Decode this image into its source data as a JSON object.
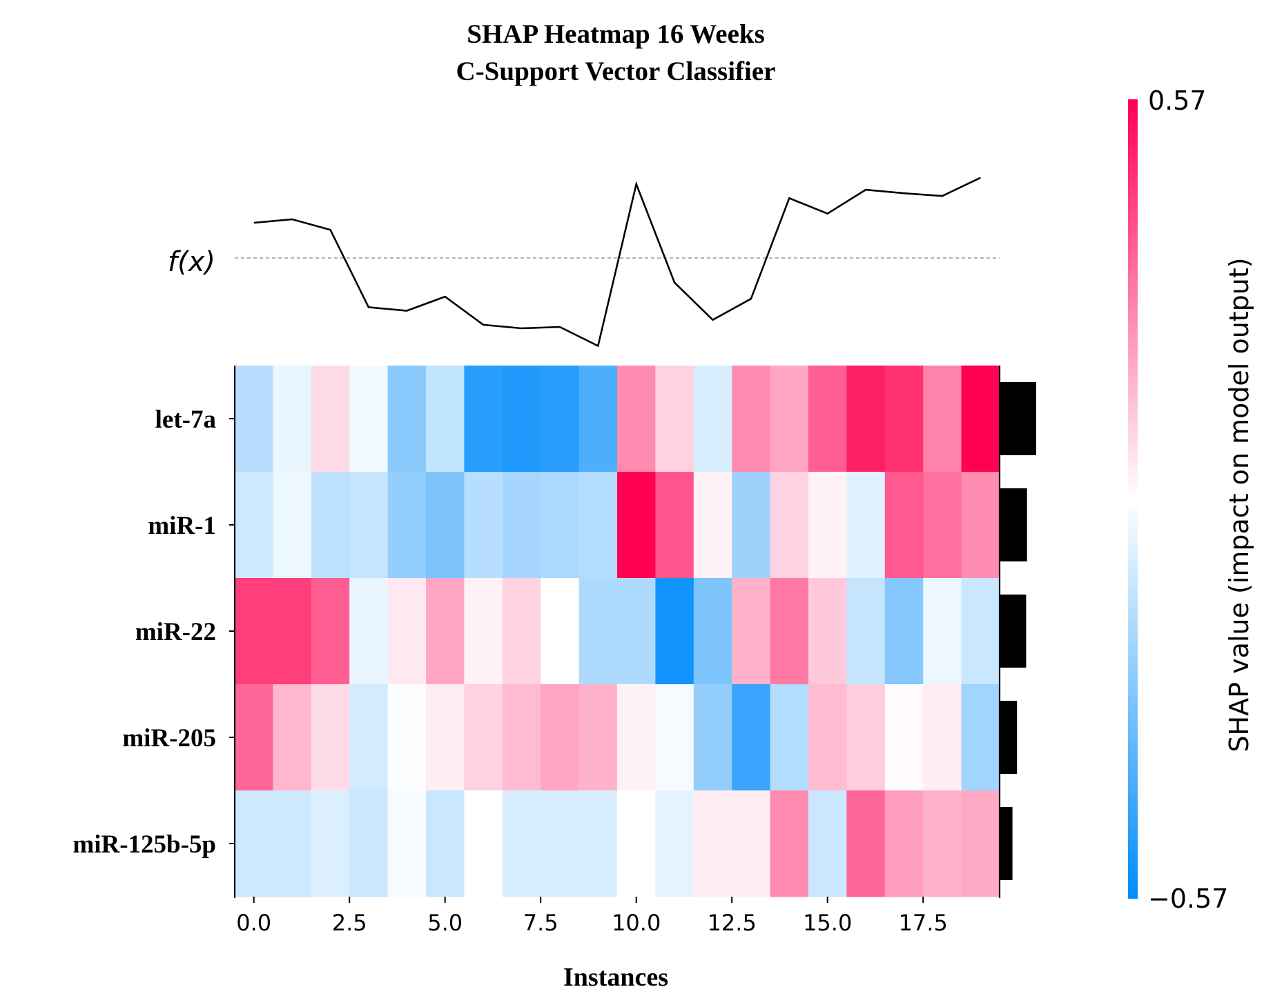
{
  "chart_data": {
    "type": "heatmap",
    "title": "SHAP Heatmap 16 Weeks",
    "subtitle": "C-Support Vector Classifier",
    "xlabel": "Instances",
    "xlim": [
      -0.5,
      19.5
    ],
    "xticks": [
      "0.0",
      "2.5",
      "5.0",
      "7.5",
      "10.0",
      "12.5",
      "15.0",
      "17.5"
    ],
    "features": [
      "let-7a",
      "miR-1",
      "miR-22",
      "miR-205",
      "miR-125b-5p"
    ],
    "values": [
      [
        -0.16,
        -0.05,
        0.08,
        -0.03,
        -0.26,
        -0.14,
        -0.48,
        -0.5,
        -0.48,
        -0.4,
        0.26,
        0.1,
        -0.09,
        0.26,
        0.2,
        0.36,
        0.5,
        0.46,
        0.28,
        0.57
      ],
      [
        -0.11,
        -0.04,
        -0.15,
        -0.13,
        -0.24,
        -0.29,
        -0.16,
        -0.2,
        -0.19,
        -0.17,
        0.57,
        0.38,
        0.03,
        -0.22,
        0.1,
        0.03,
        -0.07,
        0.37,
        0.32,
        0.26
      ],
      [
        0.43,
        0.43,
        0.36,
        -0.05,
        0.05,
        0.2,
        0.03,
        0.1,
        0.0,
        -0.18,
        -0.18,
        -0.53,
        -0.29,
        0.17,
        0.3,
        0.12,
        -0.13,
        -0.27,
        -0.04,
        -0.12
      ],
      [
        0.34,
        0.16,
        0.08,
        -0.1,
        -0.01,
        0.04,
        0.1,
        0.15,
        0.2,
        0.17,
        0.03,
        -0.02,
        -0.24,
        -0.44,
        -0.17,
        0.15,
        0.11,
        0.01,
        0.04,
        -0.21
      ],
      [
        -0.11,
        -0.11,
        -0.08,
        -0.12,
        -0.02,
        -0.12,
        0.0,
        -0.09,
        -0.09,
        -0.09,
        0.0,
        -0.06,
        0.04,
        0.04,
        0.26,
        -0.12,
        0.34,
        0.22,
        0.17,
        0.19
      ]
    ],
    "fx": [
      0.05,
      0.055,
      0.04,
      -0.07,
      -0.075,
      -0.055,
      -0.095,
      -0.1,
      -0.098,
      -0.125,
      0.105,
      -0.035,
      -0.088,
      -0.058,
      0.085,
      0.063,
      0.097,
      0.092,
      0.088,
      0.114
    ],
    "fx_baseline": 0.0,
    "fx_label": "f(x)",
    "importance": [
      0.4,
      0.3,
      0.29,
      0.19,
      0.14
    ],
    "colorbar": {
      "min": -0.57,
      "max": 0.57,
      "min_label": "−0.57",
      "max_label": "0.57",
      "label": "SHAP value (impact on model output)",
      "low_color": "#008bfb",
      "mid_color": "#ffffff",
      "high_color": "#ff0052"
    }
  }
}
